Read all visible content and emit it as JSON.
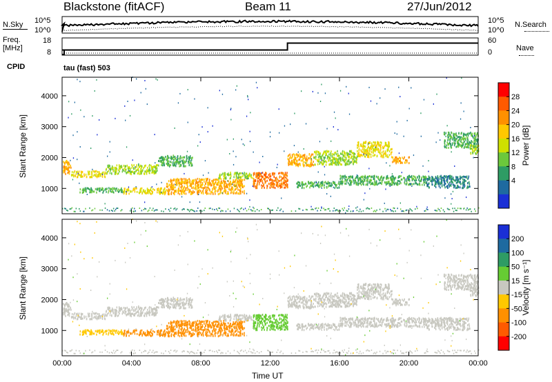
{
  "header": {
    "site": "Blackstone (fitACF)",
    "beam": "Beam 11",
    "date": "27/Jun/2012"
  },
  "noise_panel": {
    "left_label": "N.Sky",
    "right_label": "N.Search",
    "left_ticks": [
      "10^5",
      "10^0"
    ],
    "right_ticks": [
      "10^5",
      "10^0"
    ]
  },
  "freq_panel": {
    "left_label_top": "Freq.",
    "left_label_unit": "[MHz]",
    "right_label": "Nave",
    "left_ticks": [
      "18",
      "8"
    ],
    "right_ticks": [
      "60",
      "0"
    ],
    "cpid_label": "CPID",
    "program": "tau (fast) 503"
  },
  "power_panel": {
    "y_label": "Slant Range [km]",
    "colorbar_label": "Power [dB]",
    "colorbar_ticks": [
      "28",
      "24",
      "20",
      "16",
      "12",
      "8",
      "4"
    ],
    "colors": [
      "#ff0000",
      "#ff5a00",
      "#ff9000",
      "#ffc800",
      "#cfe000",
      "#6cc83c",
      "#2e9c64",
      "#1e6aa0",
      "#1a2fd6"
    ]
  },
  "velocity_panel": {
    "y_label": "Slant Range [km]",
    "colorbar_label": "Velocity [m s⁻¹]",
    "colorbar_ticks": [
      "200",
      "100",
      "50",
      "15",
      "-15",
      "-50",
      "-100",
      "-200"
    ],
    "colors": [
      "#1a2fd6",
      "#1e6aa0",
      "#2e9c64",
      "#66cc33",
      "#c8c8c0",
      "#ffc800",
      "#ff9000",
      "#ff5a00",
      "#ff0000"
    ]
  },
  "axes": {
    "x_label": "Time UT",
    "x_ticks": [
      "00:00",
      "04:00",
      "08:00",
      "12:00",
      "16:00",
      "20:00",
      "00:00"
    ],
    "y_ticks": [
      "4000",
      "3000",
      "2000",
      "1000"
    ]
  },
  "chart_data": {
    "type": "heatmap",
    "title": "Blackstone (fitACF)",
    "x": "Time UT",
    "xlim": [
      "00:00",
      "00:00"
    ],
    "ylabel": "Slant Range [km]",
    "ylim": [
      180,
      4600
    ],
    "frequency_MHz": [
      {
        "t_hr": 0,
        "value": 11
      },
      {
        "t_hr": 13,
        "value": 11
      },
      {
        "t_hr": 13,
        "value": 15
      },
      {
        "t_hr": 24,
        "value": 15
      }
    ],
    "power_ticks_dB": [
      4,
      8,
      12,
      16,
      20,
      24,
      28
    ],
    "velocity_ticks_ms": [
      -200,
      -100,
      -50,
      -15,
      15,
      50,
      100,
      200
    ],
    "echo_bands": [
      {
        "t0": 0.0,
        "t1": 0.5,
        "r0": 1450,
        "r1": 1900,
        "power": 24,
        "velocity": 0
      },
      {
        "t0": 0.5,
        "t1": 2.5,
        "r0": 1350,
        "r1": 1550,
        "power": 20,
        "velocity": 0
      },
      {
        "t0": 2.5,
        "t1": 5.5,
        "r0": 1450,
        "r1": 1750,
        "power": 16,
        "velocity": 0
      },
      {
        "t0": 5.5,
        "t1": 7.5,
        "r0": 1700,
        "r1": 2050,
        "power": 12,
        "velocity": 0
      },
      {
        "t0": 1.0,
        "t1": 3.5,
        "r0": 850,
        "r1": 1000,
        "power": 12,
        "velocity": -40
      },
      {
        "t0": 3.5,
        "t1": 6.0,
        "r0": 800,
        "r1": 1000,
        "power": 20,
        "velocity": -60
      },
      {
        "t0": 6.0,
        "t1": 10.5,
        "r0": 800,
        "r1": 1300,
        "power": 24,
        "velocity": -60
      },
      {
        "t0": 9.0,
        "t1": 11.0,
        "r0": 1300,
        "r1": 1500,
        "power": 16,
        "velocity": 0
      },
      {
        "t0": 11.0,
        "t1": 13.0,
        "r0": 1000,
        "r1": 1500,
        "power": 28,
        "velocity": 30
      },
      {
        "t0": 13.0,
        "t1": 14.5,
        "r0": 1700,
        "r1": 2100,
        "power": 24,
        "velocity": 0
      },
      {
        "t0": 14.5,
        "t1": 17.0,
        "r0": 1750,
        "r1": 2200,
        "power": 16,
        "velocity": 0
      },
      {
        "t0": 13.5,
        "t1": 16.0,
        "r0": 1000,
        "r1": 1200,
        "power": 12,
        "velocity": 0
      },
      {
        "t0": 16.0,
        "t1": 21.0,
        "r0": 1100,
        "r1": 1400,
        "power": 12,
        "velocity": 0
      },
      {
        "t0": 17.0,
        "t1": 19.0,
        "r0": 2000,
        "r1": 2500,
        "power": 20,
        "velocity": 0
      },
      {
        "t0": 19.0,
        "t1": 20.0,
        "r0": 1800,
        "r1": 2000,
        "power": 24,
        "velocity": 0
      },
      {
        "t0": 21.0,
        "t1": 23.5,
        "r0": 1000,
        "r1": 1400,
        "power": 8,
        "velocity": 0
      },
      {
        "t0": 22.0,
        "t1": 24.0,
        "r0": 2300,
        "r1": 2800,
        "power": 12,
        "velocity": 0
      },
      {
        "t0": 23.5,
        "t1": 24.0,
        "r0": 2100,
        "r1": 2400,
        "power": 16,
        "velocity": 0
      }
    ]
  }
}
